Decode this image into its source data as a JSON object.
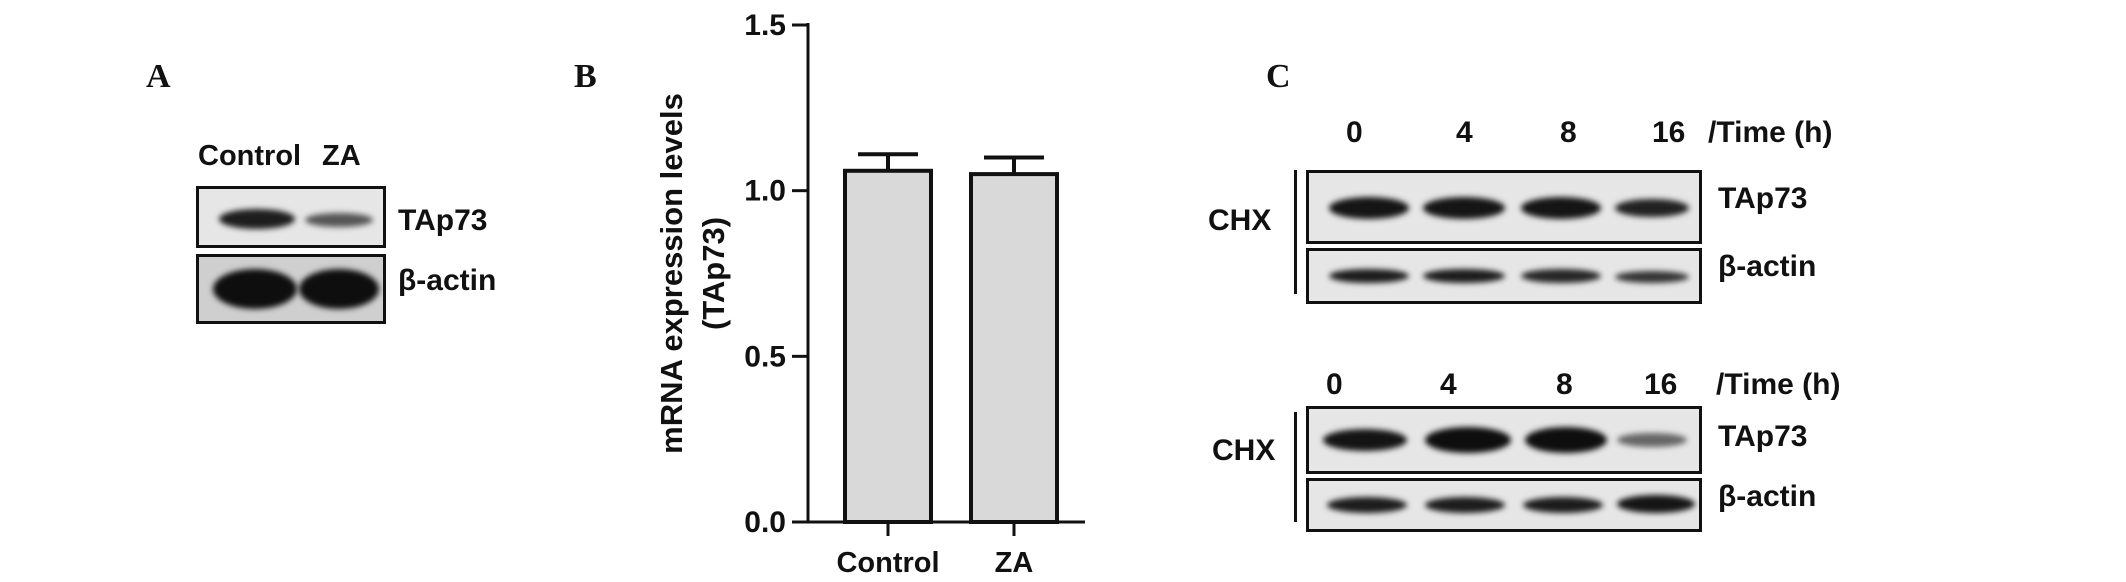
{
  "panelA": {
    "letter": "A",
    "lanes": [
      "Control",
      "ZA"
    ],
    "rows": [
      "TAp73",
      "β-actin"
    ]
  },
  "panelB": {
    "letter": "B"
  },
  "panelC": {
    "letter": "C",
    "blots": [
      {
        "times": [
          "0",
          "4",
          "8",
          "16"
        ],
        "time_label": "/Time (h)",
        "treatment": "CHX",
        "rows": [
          "TAp73",
          "β-actin"
        ]
      },
      {
        "times": [
          "0",
          "4",
          "8",
          "16"
        ],
        "time_label": "/Time (h)",
        "treatment": "CHX",
        "rows": [
          "TAp73",
          "β-actin"
        ]
      }
    ]
  },
  "chart_data": {
    "type": "bar",
    "categories": [
      "Control",
      "ZA"
    ],
    "values": [
      1.06,
      1.05
    ],
    "errors": [
      0.05,
      0.05
    ],
    "title": "",
    "xlabel": "",
    "ylabel": "mRNA expression levels\n(TAp73)",
    "ylabel_lines": [
      "mRNA expression levels",
      "(TAp73)"
    ],
    "ylim": [
      0,
      1.5
    ],
    "yticks": [
      0.0,
      0.5,
      1.0,
      1.5
    ],
    "ytick_labels": [
      "0.0",
      "0.5",
      "1.0",
      "1.5"
    ],
    "bar_color": "#d9d9d9",
    "grid": false
  }
}
